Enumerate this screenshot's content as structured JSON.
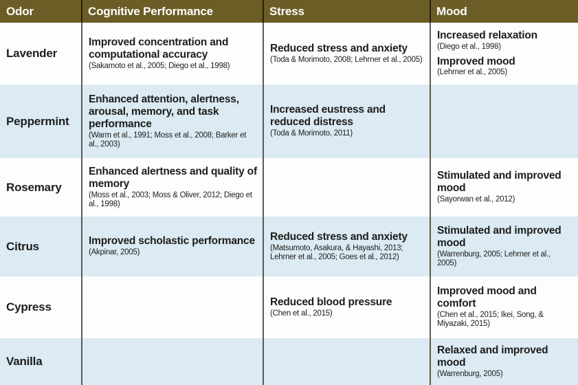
{
  "table": {
    "columns": [
      "Odor",
      "Cognitive Performance",
      "Stress",
      "Mood"
    ],
    "rows": [
      {
        "odor": "Lavender",
        "cognitive": [
          {
            "finding": "Improved concentration and computational accuracy",
            "citation": "(Sakamoto et al., 2005; Diego et al., 1998)"
          }
        ],
        "stress": [
          {
            "finding": "Reduced stress and anxiety",
            "citation": "(Toda & Morimoto, 2008; Lehrner et al., 2005)"
          }
        ],
        "mood": [
          {
            "finding": "Increased relaxation",
            "citation": "(Diego et al., 1998)"
          },
          {
            "finding": "Improved mood",
            "citation": "(Lehrner et al., 2005)"
          }
        ]
      },
      {
        "odor": "Peppermint",
        "cognitive": [
          {
            "finding": "Enhanced attention, alertness, arousal, memory, and task performance",
            "citation": "(Warm et al., 1991; Moss et al., 2008; Barker et al., 2003)"
          }
        ],
        "stress": [
          {
            "finding": "Increased eustress and reduced distress",
            "citation": "(Toda & Morimoto, 2011)"
          }
        ],
        "mood": []
      },
      {
        "odor": "Rosemary",
        "cognitive": [
          {
            "finding": "Enhanced alertness and quality of memory",
            "citation": "(Moss et al., 2003; Moss & Oliver, 2012; Diego et al., 1998)"
          }
        ],
        "stress": [],
        "mood": [
          {
            "finding": "Stimulated and improved mood",
            "citation": "(Sayorwan et al., 2012)"
          }
        ]
      },
      {
        "odor": "Citrus",
        "cognitive": [
          {
            "finding": "Improved scholastic performance",
            "citation": "(Akpinar, 2005)"
          }
        ],
        "stress": [
          {
            "finding": "Reduced stress and anxiety",
            "citation": "(Matsumoto, Asakura, & Hayashi, 2013; Lehrner et al., 2005; Goes et al., 2012)"
          }
        ],
        "mood": [
          {
            "finding": "Stimulated and improved mood",
            "citation": "(Warrenburg, 2005; Lehrner et al., 2005)"
          }
        ]
      },
      {
        "odor": "Cypress",
        "cognitive": [],
        "stress": [
          {
            "finding": "Reduced blood pressure",
            "citation": "(Chen et al., 2015)"
          }
        ],
        "mood": [
          {
            "finding": "Improved mood and comfort",
            "citation": "(Chen et al., 2015; Ikei, Song, & Miyazaki, 2015)"
          }
        ]
      },
      {
        "odor": "Vanilla",
        "cognitive": [],
        "stress": [],
        "mood": [
          {
            "finding": "Relaxed and improved mood",
            "citation": "(Warrenburg, 2005)"
          }
        ]
      }
    ]
  },
  "colors": {
    "header_bg": "#6b5d26",
    "row_bg": "#fdfdfd",
    "row_alt_bg": "#dbeaf3",
    "divider_header": "#28210a",
    "divider_body": "#5d594f",
    "header_text": "#ffffff",
    "text": "#1d1d1b"
  }
}
